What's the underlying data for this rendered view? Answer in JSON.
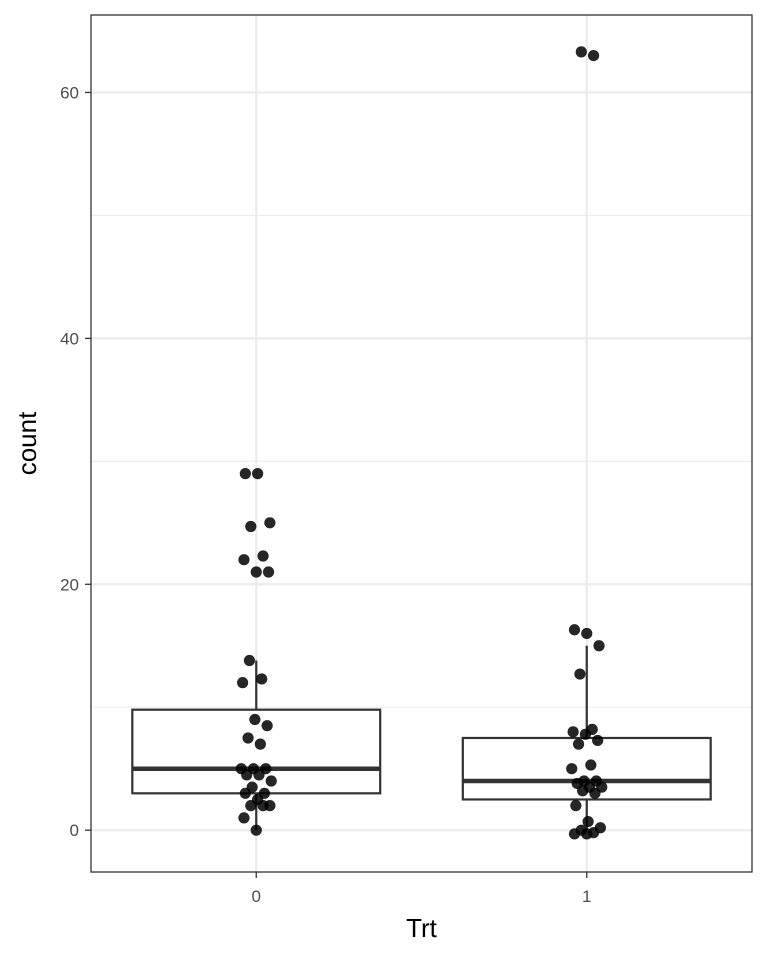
{
  "chart_data": {
    "type": "boxplot",
    "xlabel": "Trt",
    "ylabel": "count",
    "categories": [
      "0",
      "1"
    ],
    "ylim": [
      -3.4,
      66.3
    ],
    "y_ticks": [
      0,
      20,
      40,
      60
    ],
    "grid": true,
    "legend": "none",
    "colors": {
      "panel_border": "#333333",
      "grid": "#ebebeb",
      "box": "#333333",
      "points": "#000000"
    },
    "boxes": [
      {
        "category": "0",
        "q1": 3,
        "median": 5,
        "q3": 9.8,
        "whisker_low": 0,
        "whisker_high": 13.8
      },
      {
        "category": "1",
        "q1": 2.5,
        "median": 4,
        "q3": 7.5,
        "whisker_low": 0,
        "whisker_high": 15
      }
    ],
    "points": [
      {
        "category": "0",
        "values": [
          0,
          1,
          2,
          2,
          2,
          2.5,
          3,
          3,
          3.5,
          4,
          4.5,
          4.5,
          5,
          5,
          5,
          7,
          7.5,
          8.5,
          9,
          12,
          12.3,
          13.8,
          21,
          21,
          22,
          22.3,
          24.7,
          25,
          29,
          29
        ]
      },
      {
        "category": "1",
        "values": [
          -0.3,
          -0.3,
          -0.2,
          0,
          0.2,
          0.7,
          2,
          3,
          3.2,
          3.5,
          3.5,
          3.8,
          4,
          4,
          5,
          5.3,
          7,
          7.3,
          7.8,
          8,
          8.2,
          12.7,
          15,
          16,
          16.3,
          63,
          63.3
        ]
      }
    ]
  }
}
